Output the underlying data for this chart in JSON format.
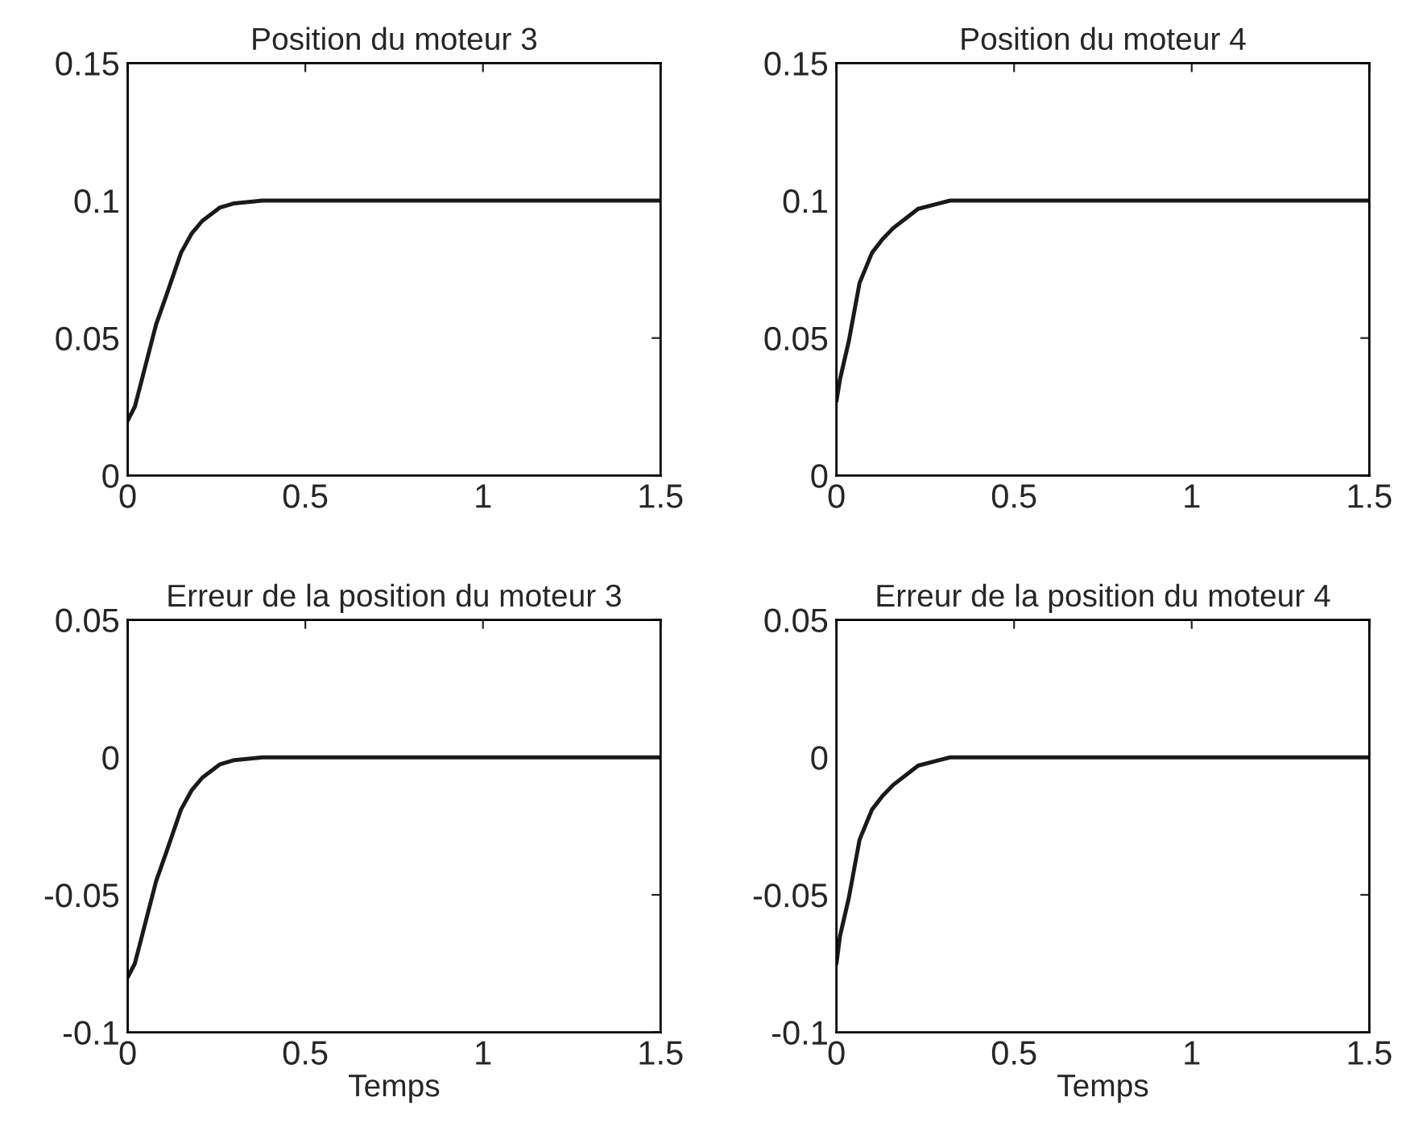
{
  "chart_data": [
    {
      "type": "line",
      "title": "Position du moteur 3",
      "x": [
        0,
        0.02,
        0.05,
        0.08,
        0.11,
        0.15,
        0.18,
        0.21,
        0.26,
        0.3,
        0.34,
        0.38,
        1.5
      ],
      "series": [
        {
          "color": "#1a1a1a",
          "values": [
            0.02,
            0.025,
            0.04,
            0.055,
            0.066,
            0.081,
            0.088,
            0.0926,
            0.0975,
            0.099,
            0.0995,
            0.1,
            0.1
          ]
        }
      ],
      "xlim": [
        0,
        1.5
      ],
      "ylim": [
        0,
        0.15
      ],
      "xticks": [
        0,
        0.5,
        1,
        1.5
      ],
      "yticks": [
        0,
        0.05,
        0.1,
        0.15
      ],
      "grid": false,
      "legend": false
    },
    {
      "type": "line",
      "title": "Position du moteur 4",
      "x": [
        0,
        0.01,
        0.035,
        0.065,
        0.1,
        0.13,
        0.16,
        0.2,
        0.23,
        0.29,
        0.32,
        1.5
      ],
      "series": [
        {
          "color": "#1a1a1a",
          "values": [
            0.027,
            0.035,
            0.049,
            0.07,
            0.081,
            0.086,
            0.09,
            0.094,
            0.097,
            0.099,
            0.1,
            0.1
          ]
        }
      ],
      "xlim": [
        0,
        1.5
      ],
      "ylim": [
        0,
        0.15
      ],
      "xticks": [
        0,
        0.5,
        1,
        1.5
      ],
      "yticks": [
        0,
        0.05,
        0.1,
        0.15
      ],
      "grid": false,
      "legend": false
    },
    {
      "type": "line",
      "title": "Erreur de la position du moteur 3",
      "xlabel": "Temps",
      "x": [
        0,
        0.02,
        0.05,
        0.08,
        0.11,
        0.15,
        0.18,
        0.21,
        0.26,
        0.3,
        0.34,
        0.38,
        1.5
      ],
      "series": [
        {
          "color": "#1a1a1a",
          "values": [
            -0.08,
            -0.075,
            -0.06,
            -0.045,
            -0.034,
            -0.019,
            -0.012,
            -0.0074,
            -0.0025,
            -0.001,
            -0.0005,
            0,
            0
          ]
        }
      ],
      "xlim": [
        0,
        1.5
      ],
      "ylim": [
        -0.1,
        0.05
      ],
      "xticks": [
        0,
        0.5,
        1,
        1.5
      ],
      "yticks": [
        -0.1,
        -0.05,
        0,
        0.05
      ],
      "grid": false,
      "legend": false
    },
    {
      "type": "line",
      "title": "Erreur de la position du moteur 4",
      "xlabel": "Temps",
      "x": [
        0,
        0.01,
        0.035,
        0.065,
        0.1,
        0.13,
        0.16,
        0.2,
        0.23,
        0.29,
        0.32,
        1.5
      ],
      "series": [
        {
          "color": "#1a1a1a",
          "values": [
            -0.075,
            -0.065,
            -0.051,
            -0.03,
            -0.019,
            -0.014,
            -0.01,
            -0.006,
            -0.003,
            -0.001,
            0,
            0
          ]
        }
      ],
      "xlim": [
        0,
        1.5
      ],
      "ylim": [
        -0.1,
        0.05
      ],
      "xticks": [
        0,
        0.5,
        1,
        1.5
      ],
      "yticks": [
        -0.1,
        -0.05,
        0,
        0.05
      ],
      "grid": false,
      "legend": false
    }
  ]
}
